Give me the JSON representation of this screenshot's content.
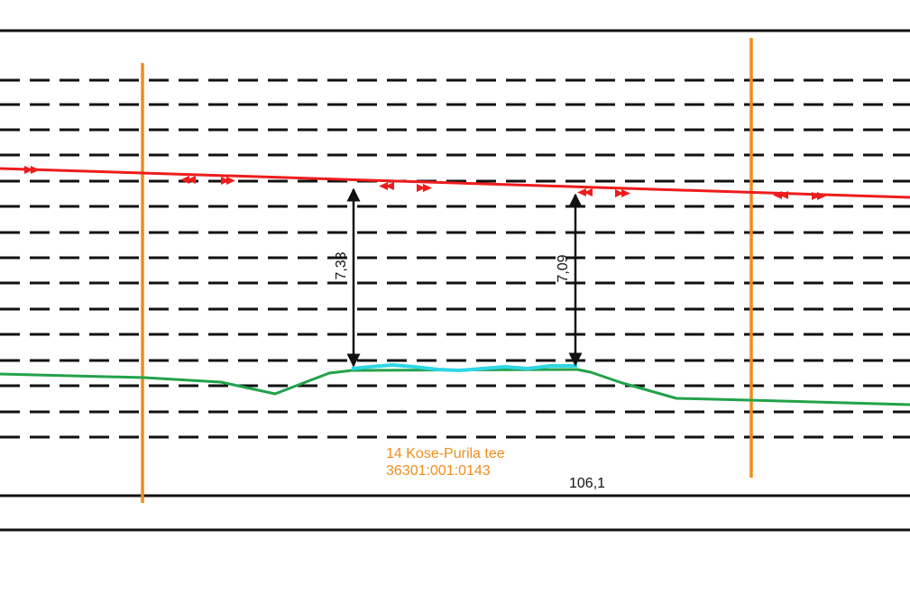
{
  "profile": {
    "road_name": "14 Kose-Purila tee",
    "cadastral_id": "36301:001:0143",
    "chainage": "106,1",
    "clearances": [
      "7,33",
      "7,09"
    ]
  },
  "colors": {
    "frame": "#111111",
    "gridline": "#111111",
    "powerline": "#ee1c1c",
    "ground": "#22a24a",
    "water": "#2fd6e6",
    "boundary": "#f28c1b",
    "dimension": "#111111",
    "label_orange": "#f28c1b"
  }
}
